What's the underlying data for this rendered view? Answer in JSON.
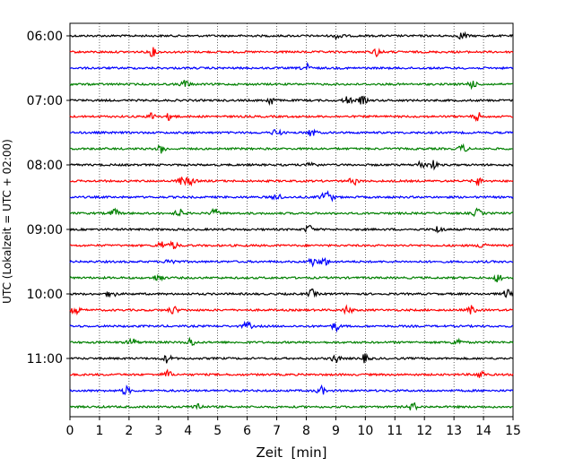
{
  "chart_data": {
    "type": "line",
    "subtype": "helicorder",
    "xlabel": "Zeit  [min]",
    "ylabel": "UTC (Lokalzeit = UTC + 02:00)",
    "xlim": [
      0,
      15
    ],
    "x_ticks": [
      0,
      1,
      2,
      3,
      4,
      5,
      6,
      7,
      8,
      9,
      10,
      11,
      12,
      13,
      14,
      15
    ],
    "x_tick_labels": [
      "0",
      "1",
      "2",
      "3",
      "4",
      "5",
      "6",
      "7",
      "8",
      "9",
      "10",
      "11",
      "12",
      "13",
      "14",
      "15"
    ],
    "y_tick_labels": [
      "06:00",
      "07:00",
      "08:00",
      "09:00",
      "10:00",
      "11:00"
    ],
    "y_tick_rows": [
      0,
      4,
      8,
      12,
      16,
      20
    ],
    "grid": "vertical-dotted",
    "trace_colors": [
      "#000000",
      "#ff0000",
      "#0000ff",
      "#008000"
    ],
    "traces": [
      {
        "start": "06:00",
        "events": [
          9.1,
          13.3
        ]
      },
      {
        "start": "06:15",
        "events": [
          2.8,
          10.4
        ]
      },
      {
        "start": "06:30",
        "events": [
          8.0
        ]
      },
      {
        "start": "06:45",
        "events": [
          3.9,
          13.6
        ]
      },
      {
        "start": "07:00",
        "events": [
          6.8,
          9.4,
          9.9
        ]
      },
      {
        "start": "07:15",
        "events": [
          2.8,
          3.4,
          13.8
        ]
      },
      {
        "start": "07:30",
        "events": [
          7.0,
          8.2
        ]
      },
      {
        "start": "07:45",
        "events": [
          3.1,
          13.3
        ]
      },
      {
        "start": "08:00",
        "events": [
          8.2,
          11.9,
          12.3
        ]
      },
      {
        "start": "08:15",
        "events": [
          3.8,
          4.1,
          9.6,
          13.8
        ]
      },
      {
        "start": "08:30",
        "events": [
          7.0,
          8.6,
          8.8
        ]
      },
      {
        "start": "08:45",
        "events": [
          1.5,
          3.7,
          4.9,
          13.8
        ]
      },
      {
        "start": "09:00",
        "events": [
          8.1,
          12.5
        ]
      },
      {
        "start": "09:15",
        "events": [
          3.1,
          3.5,
          14.0
        ]
      },
      {
        "start": "09:30",
        "events": [
          3.4,
          8.2,
          8.6
        ]
      },
      {
        "start": "09:45",
        "events": [
          3.0,
          14.5
        ]
      },
      {
        "start": "10:00",
        "events": [
          1.4,
          8.2,
          14.8
        ]
      },
      {
        "start": "10:15",
        "events": [
          0.2,
          3.5,
          9.4,
          13.6
        ]
      },
      {
        "start": "10:30",
        "events": [
          6.0,
          9.0
        ]
      },
      {
        "start": "10:45",
        "events": [
          2.1,
          4.1,
          13.1
        ]
      },
      {
        "start": "11:00",
        "events": [
          3.3,
          9.0,
          10.0
        ]
      },
      {
        "start": "11:15",
        "events": [
          3.3,
          13.9
        ]
      },
      {
        "start": "11:30",
        "events": [
          1.9,
          8.5
        ]
      },
      {
        "start": "11:45",
        "events": [
          4.3,
          11.6
        ]
      }
    ]
  }
}
